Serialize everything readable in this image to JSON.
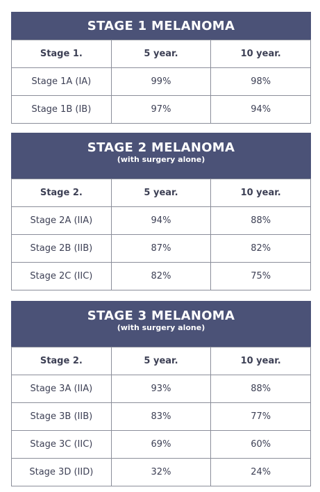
{
  "tables": [
    {
      "title": "STAGE 1 MELANOMA",
      "header": [
        "Stage 1.",
        "5 year.",
        "10 year."
      ],
      "rows": [
        [
          "Stage 1A (IA)",
          "99%",
          "98%"
        ],
        [
          "Stage 1B (IB)",
          "97%",
          "94%"
        ]
      ]
    },
    {
      "title": "STAGE 2 MELANOMA",
      "subtitle": "(with surgery alone)",
      "header": [
        "Stage 2.",
        "5 year.",
        "10 year."
      ],
      "rows": [
        [
          "Stage 2A (IIA)",
          "94%",
          "88%"
        ],
        [
          "Stage 2B (IIB)",
          "87%",
          "82%"
        ],
        [
          "Stage 2C (IIC)",
          "82%",
          "75%"
        ]
      ]
    },
    {
      "title": "STAGE 3 MELANOMA",
      "subtitle": "(with surgery alone)",
      "header": [
        "Stage 2.",
        "5 year.",
        "10 year."
      ],
      "rows": [
        [
          "Stage 3A (IIA)",
          "93%",
          "88%"
        ],
        [
          "Stage 3B (IIB)",
          "83%",
          "77%"
        ],
        [
          "Stage 3C (IIC)",
          "69%",
          "60%"
        ],
        [
          "Stage 3D (IID)",
          "32%",
          "24%"
        ]
      ]
    }
  ]
}
